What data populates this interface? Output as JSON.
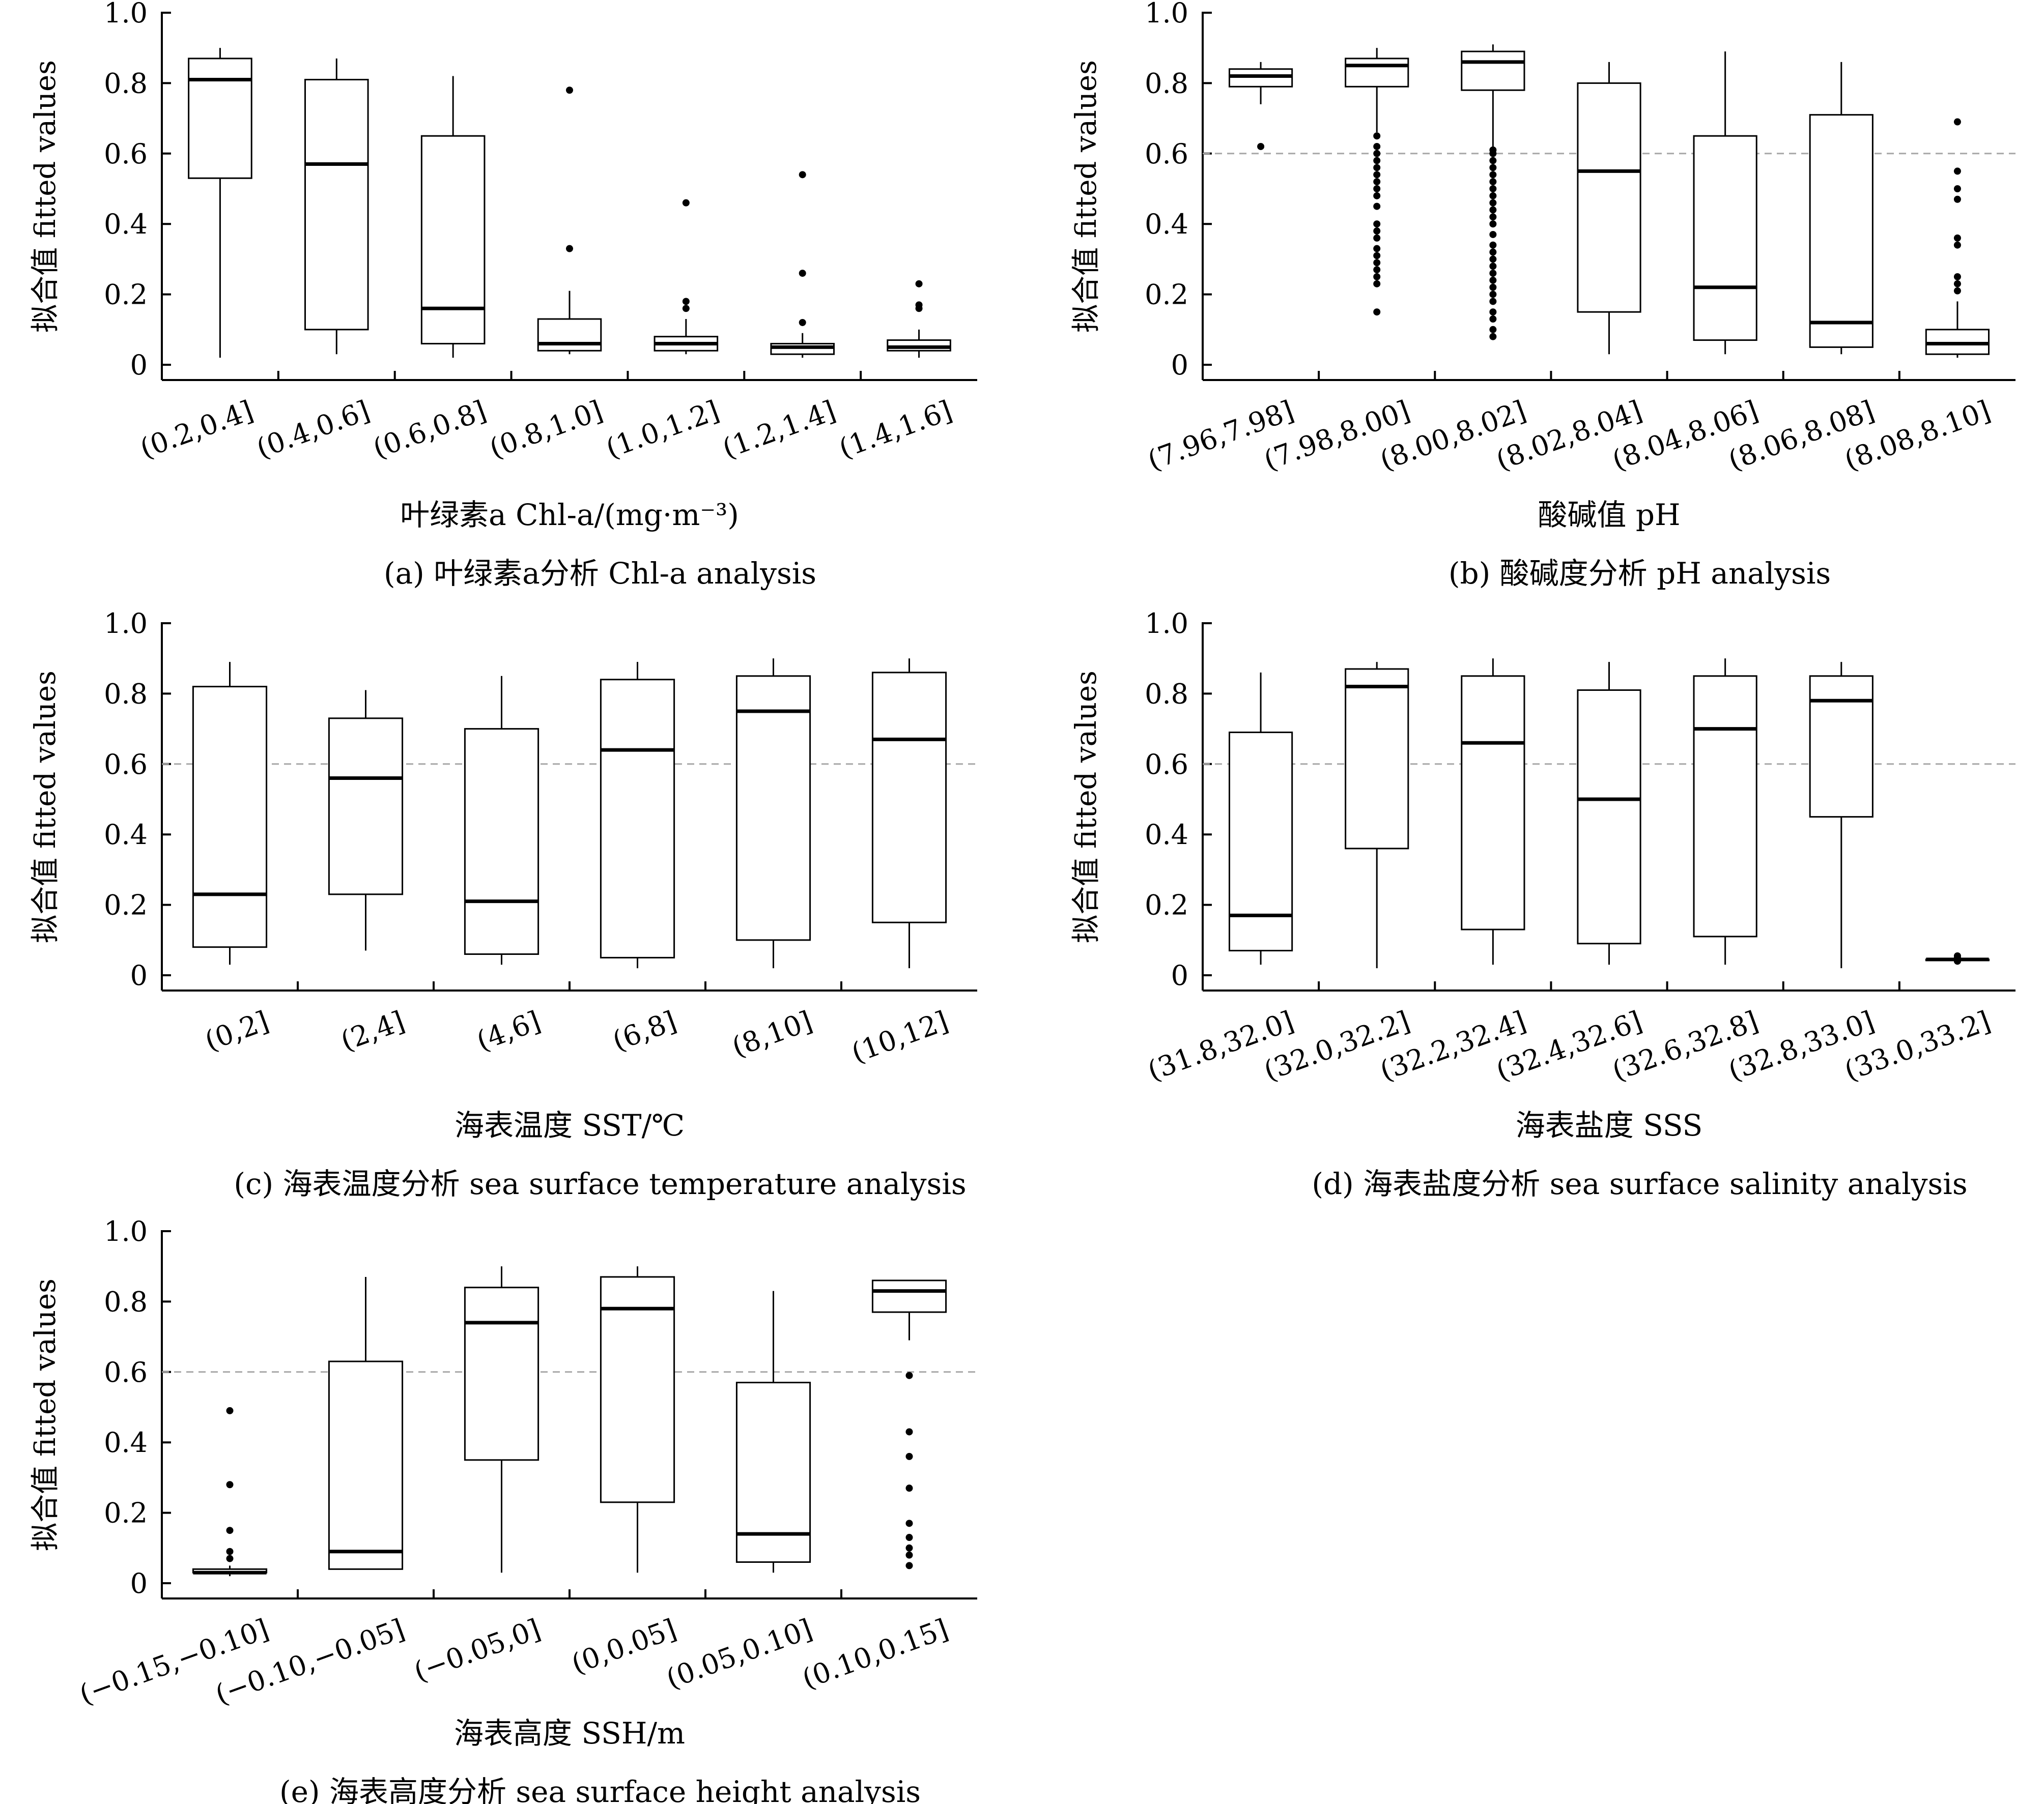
{
  "chart_data": [
    {
      "type": "box",
      "panel_caption": "(a) 叶绿素a分析 Chl-a analysis",
      "xlabel": "叶绿素a Chl-a/(mg·m⁻³)",
      "ylabel": "拟合值 fitted values",
      "ylim": [
        0,
        1.0
      ],
      "yticks": [
        "0",
        "0.2",
        "0.4",
        "0.6",
        "0.8",
        "1.0"
      ],
      "reference_line": null,
      "categories": [
        "(0.2,0.4]",
        "(0.4,0.6]",
        "(0.6,0.8]",
        "(0.8,1.0]",
        "(1.0,1.2]",
        "(1.2,1.4]",
        "(1.4,1.6]"
      ],
      "boxes": [
        {
          "whislo": 0.02,
          "q1": 0.53,
          "med": 0.81,
          "q3": 0.87,
          "whishi": 0.9,
          "fliers": []
        },
        {
          "whislo": 0.03,
          "q1": 0.1,
          "med": 0.57,
          "q3": 0.81,
          "whishi": 0.87,
          "fliers": []
        },
        {
          "whislo": 0.02,
          "q1": 0.06,
          "med": 0.16,
          "q3": 0.65,
          "whishi": 0.82,
          "fliers": []
        },
        {
          "whislo": 0.03,
          "q1": 0.04,
          "med": 0.06,
          "q3": 0.13,
          "whishi": 0.21,
          "fliers": [
            0.33,
            0.78
          ]
        },
        {
          "whislo": 0.03,
          "q1": 0.04,
          "med": 0.06,
          "q3": 0.08,
          "whishi": 0.13,
          "fliers": [
            0.16,
            0.18,
            0.46
          ]
        },
        {
          "whislo": 0.02,
          "q1": 0.03,
          "med": 0.05,
          "q3": 0.06,
          "whishi": 0.09,
          "fliers": [
            0.12,
            0.26,
            0.54
          ]
        },
        {
          "whislo": 0.02,
          "q1": 0.04,
          "med": 0.05,
          "q3": 0.07,
          "whishi": 0.1,
          "fliers": [
            0.16,
            0.17,
            0.23
          ]
        }
      ]
    },
    {
      "type": "box",
      "panel_caption": "(b) 酸碱度分析 pH analysis",
      "xlabel": "酸碱值 pH",
      "ylabel": "拟合值 fitted values",
      "ylim": [
        0,
        1.0
      ],
      "yticks": [
        "0",
        "0.2",
        "0.4",
        "0.6",
        "0.8",
        "1.0"
      ],
      "reference_line": 0.6,
      "categories": [
        "(7.96,7.98]",
        "(7.98,8.00]",
        "(8.00,8.02]",
        "(8.02,8.04]",
        "(8.04,8.06]",
        "(8.06,8.08]",
        "(8.08,8.10]"
      ],
      "boxes": [
        {
          "whislo": 0.74,
          "q1": 0.79,
          "med": 0.82,
          "q3": 0.84,
          "whishi": 0.86,
          "fliers": [
            0.62
          ]
        },
        {
          "whislo": 0.66,
          "q1": 0.79,
          "med": 0.85,
          "q3": 0.87,
          "whishi": 0.9,
          "fliers": [
            0.65,
            0.62,
            0.6,
            0.58,
            0.56,
            0.54,
            0.52,
            0.5,
            0.48,
            0.45,
            0.4,
            0.38,
            0.36,
            0.33,
            0.31,
            0.29,
            0.27,
            0.25,
            0.23,
            0.15
          ]
        },
        {
          "whislo": 0.62,
          "q1": 0.78,
          "med": 0.86,
          "q3": 0.89,
          "whishi": 0.91,
          "fliers": [
            0.61,
            0.6,
            0.58,
            0.56,
            0.54,
            0.52,
            0.5,
            0.48,
            0.46,
            0.44,
            0.42,
            0.4,
            0.37,
            0.34,
            0.32,
            0.3,
            0.28,
            0.26,
            0.24,
            0.22,
            0.2,
            0.18,
            0.15,
            0.13,
            0.1,
            0.08
          ]
        },
        {
          "whislo": 0.03,
          "q1": 0.15,
          "med": 0.55,
          "q3": 0.8,
          "whishi": 0.86,
          "fliers": []
        },
        {
          "whislo": 0.03,
          "q1": 0.07,
          "med": 0.22,
          "q3": 0.65,
          "whishi": 0.89,
          "fliers": []
        },
        {
          "whislo": 0.03,
          "q1": 0.05,
          "med": 0.12,
          "q3": 0.71,
          "whishi": 0.86,
          "fliers": []
        },
        {
          "whislo": 0.02,
          "q1": 0.03,
          "med": 0.06,
          "q3": 0.1,
          "whishi": 0.18,
          "fliers": [
            0.21,
            0.23,
            0.25,
            0.34,
            0.36,
            0.47,
            0.5,
            0.55,
            0.69
          ]
        }
      ]
    },
    {
      "type": "box",
      "panel_caption": "(c) 海表温度分析 sea surface temperature analysis",
      "xlabel": "海表温度 SST/℃",
      "ylabel": "拟合值 fitted values",
      "ylim": [
        0,
        1.0
      ],
      "yticks": [
        "0",
        "0.2",
        "0.4",
        "0.6",
        "0.8",
        "1.0"
      ],
      "reference_line": 0.6,
      "categories": [
        "(0,2]",
        "(2,4]",
        "(4,6]",
        "(6,8]",
        "(8,10]",
        "(10,12]"
      ],
      "boxes": [
        {
          "whislo": 0.03,
          "q1": 0.08,
          "med": 0.23,
          "q3": 0.82,
          "whishi": 0.89,
          "fliers": []
        },
        {
          "whislo": 0.07,
          "q1": 0.23,
          "med": 0.56,
          "q3": 0.73,
          "whishi": 0.81,
          "fliers": []
        },
        {
          "whislo": 0.03,
          "q1": 0.06,
          "med": 0.21,
          "q3": 0.7,
          "whishi": 0.85,
          "fliers": []
        },
        {
          "whislo": 0.02,
          "q1": 0.05,
          "med": 0.64,
          "q3": 0.84,
          "whishi": 0.89,
          "fliers": []
        },
        {
          "whislo": 0.02,
          "q1": 0.1,
          "med": 0.75,
          "q3": 0.85,
          "whishi": 0.9,
          "fliers": []
        },
        {
          "whislo": 0.02,
          "q1": 0.15,
          "med": 0.67,
          "q3": 0.86,
          "whishi": 0.9,
          "fliers": []
        }
      ]
    },
    {
      "type": "box",
      "panel_caption": "(d) 海表盐度分析 sea surface salinity analysis",
      "xlabel": "海表盐度 SSS",
      "ylabel": "拟合值 fitted values",
      "ylim": [
        0,
        1.0
      ],
      "yticks": [
        "0",
        "0.2",
        "0.4",
        "0.6",
        "0.8",
        "1.0"
      ],
      "reference_line": 0.6,
      "categories": [
        "(31.8,32.0]",
        "(32.0,32.2]",
        "(32.2,32.4]",
        "(32.4,32.6]",
        "(32.6,32.8]",
        "(32.8,33.0]",
        "(33.0,33.2]"
      ],
      "boxes": [
        {
          "whislo": 0.03,
          "q1": 0.07,
          "med": 0.17,
          "q3": 0.69,
          "whishi": 0.86,
          "fliers": []
        },
        {
          "whislo": 0.02,
          "q1": 0.36,
          "med": 0.82,
          "q3": 0.87,
          "whishi": 0.89,
          "fliers": []
        },
        {
          "whislo": 0.03,
          "q1": 0.13,
          "med": 0.66,
          "q3": 0.85,
          "whishi": 0.9,
          "fliers": []
        },
        {
          "whislo": 0.03,
          "q1": 0.09,
          "med": 0.5,
          "q3": 0.81,
          "whishi": 0.89,
          "fliers": []
        },
        {
          "whislo": 0.03,
          "q1": 0.11,
          "med": 0.7,
          "q3": 0.85,
          "whishi": 0.9,
          "fliers": []
        },
        {
          "whislo": 0.02,
          "q1": 0.45,
          "med": 0.78,
          "q3": 0.85,
          "whishi": 0.89,
          "fliers": []
        },
        {
          "whislo": 0.045,
          "q1": 0.045,
          "med": 0.045,
          "q3": 0.045,
          "whishi": 0.045,
          "fliers": [
            0.04,
            0.05,
            0.055
          ]
        }
      ]
    },
    {
      "type": "box",
      "panel_caption": "(e) 海表高度分析 sea surface height analysis",
      "xlabel": "海表高度 SSH/m",
      "ylabel": "拟合值 fitted values",
      "ylim": [
        0,
        1.0
      ],
      "yticks": [
        "0",
        "0.2",
        "0.4",
        "0.6",
        "0.8",
        "1.0"
      ],
      "reference_line": 0.6,
      "categories": [
        "(−0.15,−0.10]",
        "(−0.10,−0.05]",
        "(−0.05,0]",
        "(0,0.05]",
        "(0.05,0.10]",
        "(0.10,0.15]"
      ],
      "boxes": [
        {
          "whislo": 0.02,
          "q1": 0.03,
          "med": 0.03,
          "q3": 0.04,
          "whishi": 0.05,
          "fliers": [
            0.07,
            0.09,
            0.15,
            0.28,
            0.49
          ]
        },
        {
          "whislo": 0.04,
          "q1": 0.04,
          "med": 0.09,
          "q3": 0.63,
          "whishi": 0.87,
          "fliers": []
        },
        {
          "whislo": 0.03,
          "q1": 0.35,
          "med": 0.74,
          "q3": 0.84,
          "whishi": 0.9,
          "fliers": []
        },
        {
          "whislo": 0.03,
          "q1": 0.23,
          "med": 0.78,
          "q3": 0.87,
          "whishi": 0.9,
          "fliers": []
        },
        {
          "whislo": 0.03,
          "q1": 0.06,
          "med": 0.14,
          "q3": 0.57,
          "whishi": 0.83,
          "fliers": []
        },
        {
          "whislo": 0.69,
          "q1": 0.77,
          "med": 0.83,
          "q3": 0.86,
          "whishi": 0.86,
          "fliers": [
            0.59,
            0.43,
            0.36,
            0.27,
            0.17,
            0.13,
            0.1,
            0.08,
            0.05
          ]
        }
      ]
    }
  ]
}
